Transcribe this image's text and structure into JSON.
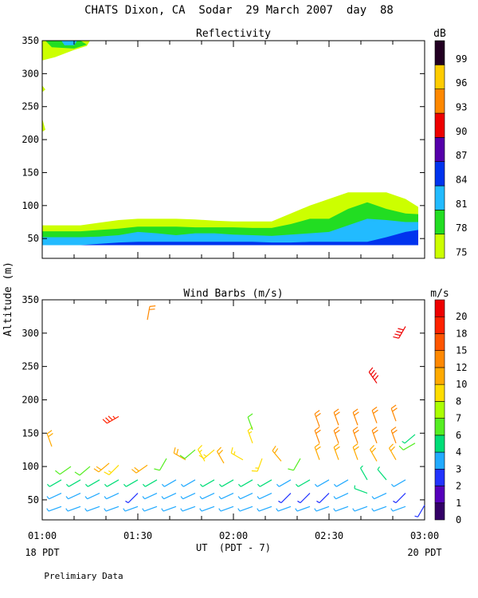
{
  "figure": {
    "title": "CHATS Dixon, CA  Sodar  29 March 2007  day  88",
    "ylabel": "Altitude (m)",
    "xlabel": "UT  (PDT - 7)",
    "x_ticks": [
      "01:00",
      "01:30",
      "02:00",
      "02:30",
      "03:00"
    ],
    "left_date": "18 PDT",
    "right_date": "20 PDT",
    "footer": "Prelimiary Data",
    "background": "#ffffff"
  },
  "chart_data": [
    {
      "type": "heatmap",
      "title": "Reflectivity",
      "colorbar_label": "dB",
      "xlim": [
        60,
        180
      ],
      "ylim": [
        20,
        350
      ],
      "y_ticks": [
        50,
        100,
        150,
        200,
        250,
        300,
        350
      ],
      "levels": [
        {
          "label": "75",
          "color": "#ccff00"
        },
        {
          "label": "78",
          "color": "#22dd22"
        },
        {
          "label": "81",
          "color": "#22bbff"
        },
        {
          "label": "84",
          "color": "#0033ee"
        },
        {
          "label": "87",
          "color": "#5500aa"
        },
        {
          "label": "90",
          "color": "#ee0000"
        },
        {
          "label": "93",
          "color": "#ff8800"
        },
        {
          "label": "96",
          "color": "#ffcc00"
        },
        {
          "label": "99",
          "color": "#220022"
        }
      ],
      "x": [
        60,
        66,
        72,
        78,
        84,
        90,
        96,
        102,
        108,
        114,
        120,
        126,
        132,
        138,
        144,
        150,
        156,
        162,
        168,
        174,
        178
      ],
      "bands": [
        {
          "level": "75",
          "bottom": [
            40,
            40,
            40,
            40,
            40,
            40,
            40,
            40,
            40,
            40,
            40,
            40,
            40,
            40,
            40,
            40,
            40,
            40,
            40,
            40,
            40
          ],
          "top": [
            70,
            70,
            70,
            74,
            78,
            80,
            80,
            80,
            79,
            77,
            76,
            76,
            76,
            88,
            100,
            110,
            120,
            120,
            120,
            110,
            98
          ]
        },
        {
          "level": "78",
          "bottom": [
            40,
            40,
            40,
            40,
            40,
            40,
            40,
            40,
            40,
            40,
            40,
            40,
            40,
            40,
            40,
            40,
            40,
            40,
            40,
            40,
            40
          ],
          "top": [
            61,
            61,
            61,
            63,
            65,
            68,
            68,
            68,
            67,
            67,
            67,
            66,
            66,
            72,
            80,
            80,
            95,
            105,
            95,
            88,
            87
          ]
        },
        {
          "level": "81",
          "bottom": [
            40,
            40,
            40,
            40,
            40,
            40,
            40,
            40,
            40,
            40,
            40,
            40,
            40,
            40,
            40,
            40,
            40,
            40,
            40,
            40,
            40
          ],
          "top": [
            52,
            52,
            52,
            53,
            55,
            60,
            58,
            55,
            58,
            58,
            56,
            55,
            54,
            56,
            58,
            60,
            70,
            80,
            78,
            75,
            75
          ]
        },
        {
          "level": "84",
          "bottom": [
            40,
            40,
            40,
            40,
            40,
            40,
            40,
            40,
            40,
            40,
            40,
            40,
            40,
            40,
            40,
            40,
            40,
            40,
            40,
            40,
            40
          ],
          "top": [
            40,
            40,
            40,
            42,
            44,
            45,
            45,
            45,
            45,
            45,
            45,
            45,
            44,
            44,
            45,
            45,
            45,
            45,
            52,
            60,
            63
          ]
        }
      ],
      "patches": [
        {
          "level": "75",
          "points": [
            [
              60,
              350
            ],
            [
              66,
              350
            ],
            [
              72,
              350
            ],
            [
              75,
              350
            ],
            [
              74,
              342
            ],
            [
              70,
              336
            ],
            [
              64,
              325
            ],
            [
              60,
              320
            ]
          ]
        },
        {
          "level": "78",
          "points": [
            [
              61,
              350
            ],
            [
              72,
              350
            ],
            [
              74,
              344
            ],
            [
              70,
              338
            ],
            [
              63,
              340
            ]
          ]
        },
        {
          "level": "81",
          "points": [
            [
              66,
              350
            ],
            [
              71,
              350
            ],
            [
              70,
              343
            ],
            [
              67,
              343
            ]
          ]
        },
        {
          "level": "75",
          "points": [
            [
              60,
              232
            ],
            [
              61,
              215
            ],
            [
              60,
              212
            ]
          ]
        },
        {
          "level": "75",
          "points": [
            [
              60,
              282
            ],
            [
              61,
              276
            ],
            [
              60,
              272
            ]
          ]
        }
      ]
    },
    {
      "type": "scatter",
      "title": "Wind Barbs (m/s)",
      "colorbar_label": "m/s",
      "xlim": [
        60,
        180
      ],
      "ylim": [
        20,
        350
      ],
      "y_ticks": [
        50,
        100,
        150,
        200,
        250,
        300,
        350
      ],
      "speed_levels": [
        {
          "label": "0",
          "color": "#330066"
        },
        {
          "label": "1",
          "color": "#5500bb"
        },
        {
          "label": "2",
          "color": "#2233ff"
        },
        {
          "label": "3",
          "color": "#22aaff"
        },
        {
          "label": "4",
          "color": "#00dd77"
        },
        {
          "label": "6",
          "color": "#55ee22"
        },
        {
          "label": "7",
          "color": "#aaff00"
        },
        {
          "label": "8",
          "color": "#ffdd00"
        },
        {
          "label": "10",
          "color": "#ffaa00"
        },
        {
          "label": "12",
          "color": "#ff8800"
        },
        {
          "label": "15",
          "color": "#ff5500"
        },
        {
          "label": "18",
          "color": "#ff2200"
        },
        {
          "label": "20",
          "color": "#ee0000"
        }
      ],
      "barbs": [
        {
          "t": 66,
          "z": 40,
          "spd": 3,
          "dir": 250
        },
        {
          "t": 72,
          "z": 40,
          "spd": 3,
          "dir": 250
        },
        {
          "t": 78,
          "z": 40,
          "spd": 3,
          "dir": 250
        },
        {
          "t": 84,
          "z": 40,
          "spd": 3,
          "dir": 250
        },
        {
          "t": 90,
          "z": 40,
          "spd": 3,
          "dir": 250
        },
        {
          "t": 96,
          "z": 40,
          "spd": 3,
          "dir": 250
        },
        {
          "t": 102,
          "z": 40,
          "spd": 3,
          "dir": 250
        },
        {
          "t": 108,
          "z": 40,
          "spd": 3,
          "dir": 250
        },
        {
          "t": 114,
          "z": 40,
          "spd": 3,
          "dir": 250
        },
        {
          "t": 120,
          "z": 40,
          "spd": 3,
          "dir": 250
        },
        {
          "t": 126,
          "z": 40,
          "spd": 3,
          "dir": 250
        },
        {
          "t": 132,
          "z": 40,
          "spd": 3,
          "dir": 250
        },
        {
          "t": 138,
          "z": 40,
          "spd": 3,
          "dir": 250
        },
        {
          "t": 144,
          "z": 40,
          "spd": 3,
          "dir": 250
        },
        {
          "t": 150,
          "z": 40,
          "spd": 3,
          "dir": 250
        },
        {
          "t": 156,
          "z": 40,
          "spd": 3,
          "dir": 250
        },
        {
          "t": 162,
          "z": 40,
          "spd": 3,
          "dir": 250
        },
        {
          "t": 168,
          "z": 40,
          "spd": 3,
          "dir": 250
        },
        {
          "t": 174,
          "z": 40,
          "spd": 3,
          "dir": 250
        },
        {
          "t": 180,
          "z": 42,
          "spd": 2,
          "dir": 210
        },
        {
          "t": 66,
          "z": 60,
          "spd": 3,
          "dir": 245
        },
        {
          "t": 72,
          "z": 60,
          "spd": 3,
          "dir": 245
        },
        {
          "t": 78,
          "z": 60,
          "spd": 3,
          "dir": 245
        },
        {
          "t": 84,
          "z": 60,
          "spd": 3,
          "dir": 245
        },
        {
          "t": 90,
          "z": 60,
          "spd": 2,
          "dir": 225
        },
        {
          "t": 96,
          "z": 60,
          "spd": 3,
          "dir": 245
        },
        {
          "t": 102,
          "z": 60,
          "spd": 3,
          "dir": 245
        },
        {
          "t": 108,
          "z": 60,
          "spd": 3,
          "dir": 245
        },
        {
          "t": 114,
          "z": 60,
          "spd": 3,
          "dir": 245
        },
        {
          "t": 120,
          "z": 60,
          "spd": 3,
          "dir": 245
        },
        {
          "t": 126,
          "z": 60,
          "spd": 3,
          "dir": 245
        },
        {
          "t": 132,
          "z": 60,
          "spd": 3,
          "dir": 245
        },
        {
          "t": 138,
          "z": 60,
          "spd": 2,
          "dir": 225
        },
        {
          "t": 144,
          "z": 60,
          "spd": 2,
          "dir": 225
        },
        {
          "t": 150,
          "z": 60,
          "spd": 2,
          "dir": 225
        },
        {
          "t": 156,
          "z": 60,
          "spd": 3,
          "dir": 245
        },
        {
          "t": 162,
          "z": 60,
          "spd": 4,
          "dir": 290
        },
        {
          "t": 168,
          "z": 60,
          "spd": 3,
          "dir": 245
        },
        {
          "t": 174,
          "z": 60,
          "spd": 2,
          "dir": 225
        },
        {
          "t": 66,
          "z": 80,
          "spd": 4,
          "dir": 240
        },
        {
          "t": 72,
          "z": 80,
          "spd": 4,
          "dir": 240
        },
        {
          "t": 78,
          "z": 80,
          "spd": 4,
          "dir": 240
        },
        {
          "t": 84,
          "z": 80,
          "spd": 4,
          "dir": 240
        },
        {
          "t": 90,
          "z": 80,
          "spd": 4,
          "dir": 240
        },
        {
          "t": 96,
          "z": 80,
          "spd": 4,
          "dir": 240
        },
        {
          "t": 102,
          "z": 80,
          "spd": 3,
          "dir": 240
        },
        {
          "t": 108,
          "z": 80,
          "spd": 3,
          "dir": 240
        },
        {
          "t": 114,
          "z": 80,
          "spd": 4,
          "dir": 240
        },
        {
          "t": 120,
          "z": 80,
          "spd": 4,
          "dir": 240
        },
        {
          "t": 126,
          "z": 80,
          "spd": 4,
          "dir": 240
        },
        {
          "t": 132,
          "z": 80,
          "spd": 4,
          "dir": 240
        },
        {
          "t": 138,
          "z": 80,
          "spd": 3,
          "dir": 240
        },
        {
          "t": 144,
          "z": 80,
          "spd": 4,
          "dir": 240
        },
        {
          "t": 150,
          "z": 80,
          "spd": 3,
          "dir": 240
        },
        {
          "t": 156,
          "z": 80,
          "spd": 3,
          "dir": 240
        },
        {
          "t": 162,
          "z": 80,
          "spd": 4,
          "dir": 330
        },
        {
          "t": 168,
          "z": 80,
          "spd": 4,
          "dir": 320
        },
        {
          "t": 174,
          "z": 80,
          "spd": 3,
          "dir": 240
        },
        {
          "t": 69,
          "z": 100,
          "spd": 6,
          "dir": 235
        },
        {
          "t": 75,
          "z": 100,
          "spd": 6,
          "dir": 230
        },
        {
          "t": 81,
          "z": 105,
          "spd": 10,
          "dir": 230
        },
        {
          "t": 84,
          "z": 102,
          "spd": 8,
          "dir": 225
        },
        {
          "t": 93,
          "z": 102,
          "spd": 10,
          "dir": 235
        },
        {
          "t": 99,
          "z": 112,
          "spd": 6,
          "dir": 210
        },
        {
          "t": 105,
          "z": 110,
          "spd": 10,
          "dir": 300
        },
        {
          "t": 111,
          "z": 108,
          "spd": 8,
          "dir": 330
        },
        {
          "t": 117,
          "z": 105,
          "spd": 10,
          "dir": 330
        },
        {
          "t": 123,
          "z": 110,
          "spd": 8,
          "dir": 300
        },
        {
          "t": 129,
          "z": 112,
          "spd": 8,
          "dir": 200
        },
        {
          "t": 135,
          "z": 108,
          "spd": 10,
          "dir": 320
        },
        {
          "t": 141,
          "z": 112,
          "spd": 6,
          "dir": 210
        },
        {
          "t": 147,
          "z": 110,
          "spd": 10,
          "dir": 340
        },
        {
          "t": 153,
          "z": 110,
          "spd": 10,
          "dir": 340
        },
        {
          "t": 159,
          "z": 110,
          "spd": 10,
          "dir": 340
        },
        {
          "t": 165,
          "z": 108,
          "spd": 10,
          "dir": 330
        },
        {
          "t": 171,
          "z": 110,
          "spd": 10,
          "dir": 330
        },
        {
          "t": 63,
          "z": 130,
          "spd": 10,
          "dir": 340
        },
        {
          "t": 108,
          "z": 125,
          "spd": 6,
          "dir": 230
        },
        {
          "t": 114,
          "z": 125,
          "spd": 8,
          "dir": 230
        },
        {
          "t": 126,
          "z": 135,
          "spd": 8,
          "dir": 340
        },
        {
          "t": 147,
          "z": 135,
          "spd": 12,
          "dir": 340
        },
        {
          "t": 153,
          "z": 135,
          "spd": 12,
          "dir": 340
        },
        {
          "t": 159,
          "z": 135,
          "spd": 12,
          "dir": 340
        },
        {
          "t": 165,
          "z": 135,
          "spd": 12,
          "dir": 340
        },
        {
          "t": 171,
          "z": 135,
          "spd": 12,
          "dir": 340
        },
        {
          "t": 177,
          "z": 135,
          "spd": 6,
          "dir": 240
        },
        {
          "t": 126,
          "z": 155,
          "spd": 6,
          "dir": 340
        },
        {
          "t": 147,
          "z": 160,
          "spd": 12,
          "dir": 340
        },
        {
          "t": 153,
          "z": 162,
          "spd": 12,
          "dir": 340
        },
        {
          "t": 159,
          "z": 162,
          "spd": 12,
          "dir": 340
        },
        {
          "t": 165,
          "z": 165,
          "spd": 12,
          "dir": 340
        },
        {
          "t": 171,
          "z": 168,
          "spd": 12,
          "dir": 340
        },
        {
          "t": 177,
          "z": 148,
          "spd": 4,
          "dir": 230
        },
        {
          "t": 84,
          "z": 175,
          "spd": 18,
          "dir": 240
        },
        {
          "t": 165,
          "z": 225,
          "spd": 20,
          "dir": 325
        },
        {
          "t": 93,
          "z": 320,
          "spd": 12,
          "dir": 10
        },
        {
          "t": 174,
          "z": 310,
          "spd": 20,
          "dir": 210
        }
      ]
    }
  ]
}
